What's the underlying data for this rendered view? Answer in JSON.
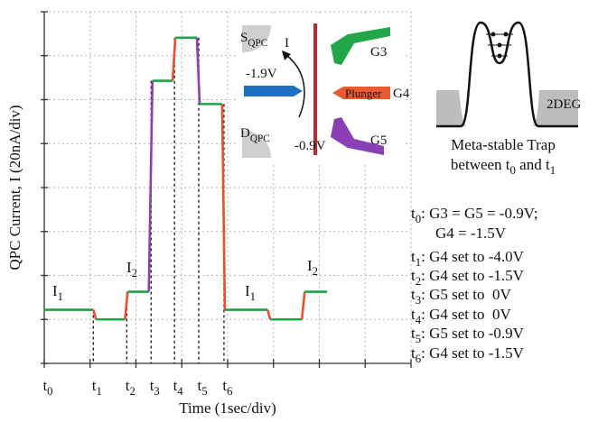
{
  "chart_data": {
    "type": "line",
    "xlabel": "Time (1sec/div)",
    "ylabel": "QPC Current, I (20nA/div)",
    "xlim": [
      0,
      8
    ],
    "ylim": [
      0,
      8
    ],
    "xgrid": [
      0,
      1,
      2,
      3,
      4,
      5,
      6,
      7,
      8
    ],
    "ygrid": [
      0,
      1,
      2,
      3,
      4,
      5,
      6,
      7,
      8
    ],
    "grid": true,
    "xticks": [
      {
        "value": 0,
        "label": "t0"
      },
      {
        "value": 1.07,
        "label": "t1"
      },
      {
        "value": 1.8,
        "label": "t2"
      },
      {
        "value": 2.33,
        "label": "t3"
      },
      {
        "value": 2.84,
        "label": "t4"
      },
      {
        "value": 3.37,
        "label": "t5"
      },
      {
        "value": 3.92,
        "label": "t6"
      }
    ],
    "series": [
      {
        "color": "#1ea34a",
        "x": [
          0,
          1.07
        ],
        "values": [
          1.22,
          1.22
        ]
      },
      {
        "color": "#e8512a",
        "x": [
          1.07,
          1.13
        ],
        "values": [
          1.22,
          1.0
        ]
      },
      {
        "color": "#1ea34a",
        "x": [
          1.13,
          1.76
        ],
        "values": [
          1.0,
          1.0
        ]
      },
      {
        "color": "#e8512a",
        "x": [
          1.76,
          1.82
        ],
        "values": [
          1.0,
          1.63
        ]
      },
      {
        "color": "#1ea34a",
        "x": [
          1.82,
          2.28
        ],
        "values": [
          1.63,
          1.63
        ]
      },
      {
        "color": "#8b3fb5",
        "x": [
          2.28,
          2.36
        ],
        "values": [
          1.63,
          6.43
        ]
      },
      {
        "color": "#1ea34a",
        "x": [
          2.36,
          2.8
        ],
        "values": [
          6.43,
          6.43
        ]
      },
      {
        "color": "#e8512a",
        "x": [
          2.8,
          2.86
        ],
        "values": [
          6.43,
          7.41
        ]
      },
      {
        "color": "#1ea34a",
        "x": [
          2.86,
          3.33
        ],
        "values": [
          7.41,
          7.41
        ]
      },
      {
        "color": "#8b3fb5",
        "x": [
          3.33,
          3.39
        ],
        "values": [
          7.41,
          5.9
        ]
      },
      {
        "color": "#1ea34a",
        "x": [
          3.39,
          3.88
        ],
        "values": [
          5.9,
          5.9
        ]
      },
      {
        "color": "#e8512a",
        "x": [
          3.88,
          3.94
        ],
        "values": [
          5.9,
          1.22
        ]
      },
      {
        "color": "#1ea34a",
        "x": [
          3.94,
          4.87
        ],
        "values": [
          1.22,
          1.22
        ]
      },
      {
        "color": "#e8512a",
        "x": [
          4.87,
          4.93
        ],
        "values": [
          1.22,
          1.0
        ]
      },
      {
        "color": "#1ea34a",
        "x": [
          4.93,
          5.62
        ],
        "values": [
          1.0,
          1.0
        ]
      },
      {
        "color": "#e8512a",
        "x": [
          5.62,
          5.68
        ],
        "values": [
          1.0,
          1.63
        ]
      },
      {
        "color": "#1ea34a",
        "x": [
          5.68,
          6.17
        ],
        "values": [
          1.63,
          1.63
        ]
      }
    ],
    "annotations": [
      "I1",
      "I2",
      "I1",
      "I2"
    ]
  },
  "inset": {
    "source": "SQPC",
    "current": "I",
    "source_voltage": "-1.9V",
    "drain": "DQPC",
    "gate_voltage": "-0.9V",
    "g3": "G3",
    "plunger": "Plunger",
    "g4": "G4",
    "g5": "G5"
  },
  "trap": {
    "reservoir": "2DEG",
    "caption": [
      "Meta-stable Trap",
      "between t0 and t1"
    ]
  },
  "settings": [
    "t0: G3 = G5 = -0.9V;",
    "G4 = -1.5V",
    "t1: G4 set to -4.0V",
    "t2: G4 set to -1.5V",
    "t3: G5 set to  0V",
    "t4: G4 set to  0V",
    "t5: G5 set to -0.9V",
    "t6: G4 set to -1.5V"
  ]
}
